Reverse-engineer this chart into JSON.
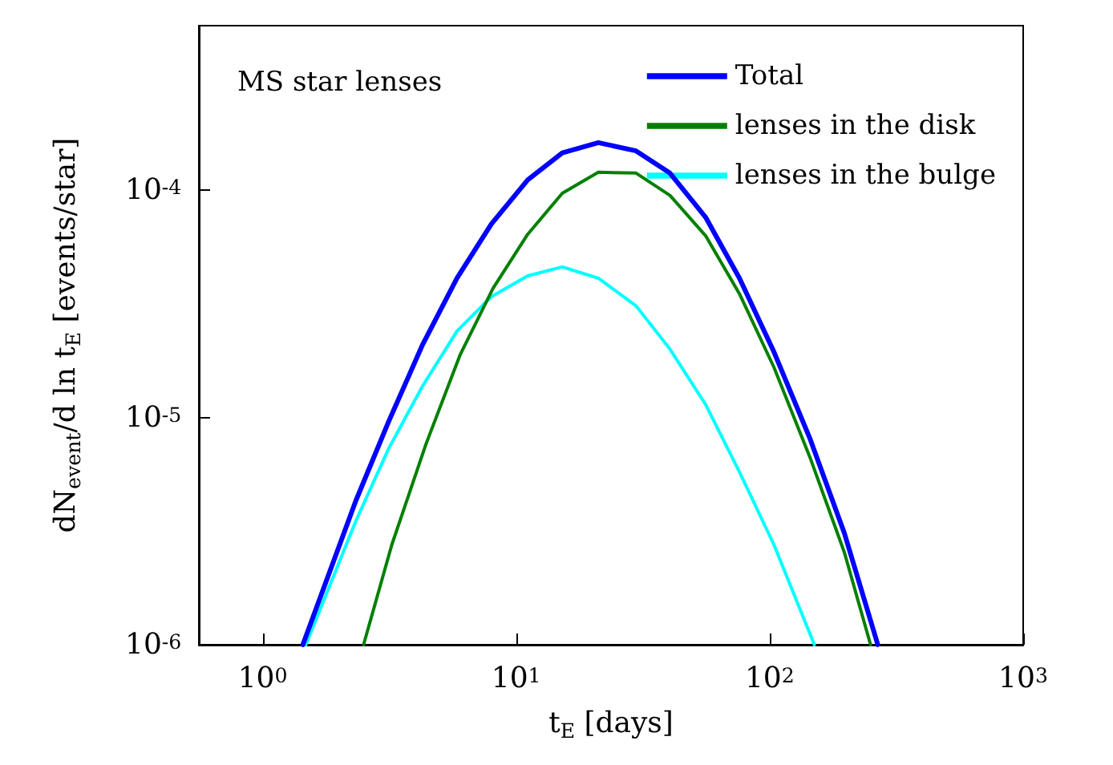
{
  "chart_data": {
    "type": "line",
    "xlabel": "t$_{E}$ [days]",
    "ylabel": "dN$_{event}$/d ln t$_{E}$ [events/star]",
    "log": "xy",
    "grid": false,
    "legend": "top right",
    "marker": "none",
    "line_style": "solid",
    "xlim": [
      0.56,
      1000
    ],
    "ylim": [
      1e-06,
      0.00053
    ],
    "xticks": [
      {
        "value": 1,
        "label": "10$^{0}$"
      },
      {
        "value": 10,
        "label": "10$^{1}$"
      },
      {
        "value": 100,
        "label": "10$^{2}$"
      },
      {
        "value": 1000,
        "label": "10$^{3}$"
      }
    ],
    "yticks": [
      {
        "value": 1e-06,
        "label": "10$^{-6}$"
      },
      {
        "value": 1e-05,
        "label": "10$^{-5}$"
      },
      {
        "value": 0.0001,
        "label": "10$^{-4}$"
      }
    ],
    "annotations": [
      "MS star lenses"
    ],
    "series": [
      {
        "name": "Total",
        "color": "#0000ff",
        "x": [
          1.44,
          2.33,
          3.14,
          4.28,
          5.84,
          7.98,
          11.1,
          15.2,
          21.1,
          29.7,
          40.4,
          55.9,
          76,
          104,
          144,
          197,
          267
        ],
        "values": [
          1e-06,
          4.3e-06,
          9.6e-06,
          2.1e-05,
          4.1e-05,
          7.1e-05,
          0.000111,
          0.000146,
          0.000162,
          0.000149,
          0.000119,
          7.6e-05,
          4.1e-05,
          1.94e-05,
          8.1e-06,
          3.1e-06,
          1e-06
        ]
      },
      {
        "name": "lenses in the disk",
        "color": "#008000",
        "x": [
          2.5,
          3.23,
          4.4,
          6.0,
          8.1,
          11.1,
          15.2,
          21.1,
          29.7,
          40.4,
          55.9,
          76,
          104,
          144,
          197,
          250
        ],
        "values": [
          1e-06,
          2.75e-06,
          7.6e-06,
          1.88e-05,
          3.7e-05,
          6.4e-05,
          9.7e-05,
          0.00012,
          0.000119,
          9.5e-05,
          6.3e-05,
          3.5e-05,
          1.66e-05,
          6.7e-06,
          2.55e-06,
          1e-06
        ]
      },
      {
        "name": "lenses in the bulge",
        "color": "#00ffff",
        "x": [
          1.48,
          2.33,
          3.14,
          4.28,
          5.84,
          7.98,
          11.1,
          15.2,
          21.1,
          29.7,
          40.4,
          55.9,
          76,
          104,
          150
        ],
        "values": [
          1e-06,
          3.5e-06,
          7.3e-06,
          1.38e-05,
          2.4e-05,
          3.4e-05,
          4.2e-05,
          4.6e-05,
          4.1e-05,
          3.1e-05,
          2e-05,
          1.14e-05,
          5.75e-06,
          2.75e-06,
          1e-06
        ]
      }
    ]
  }
}
